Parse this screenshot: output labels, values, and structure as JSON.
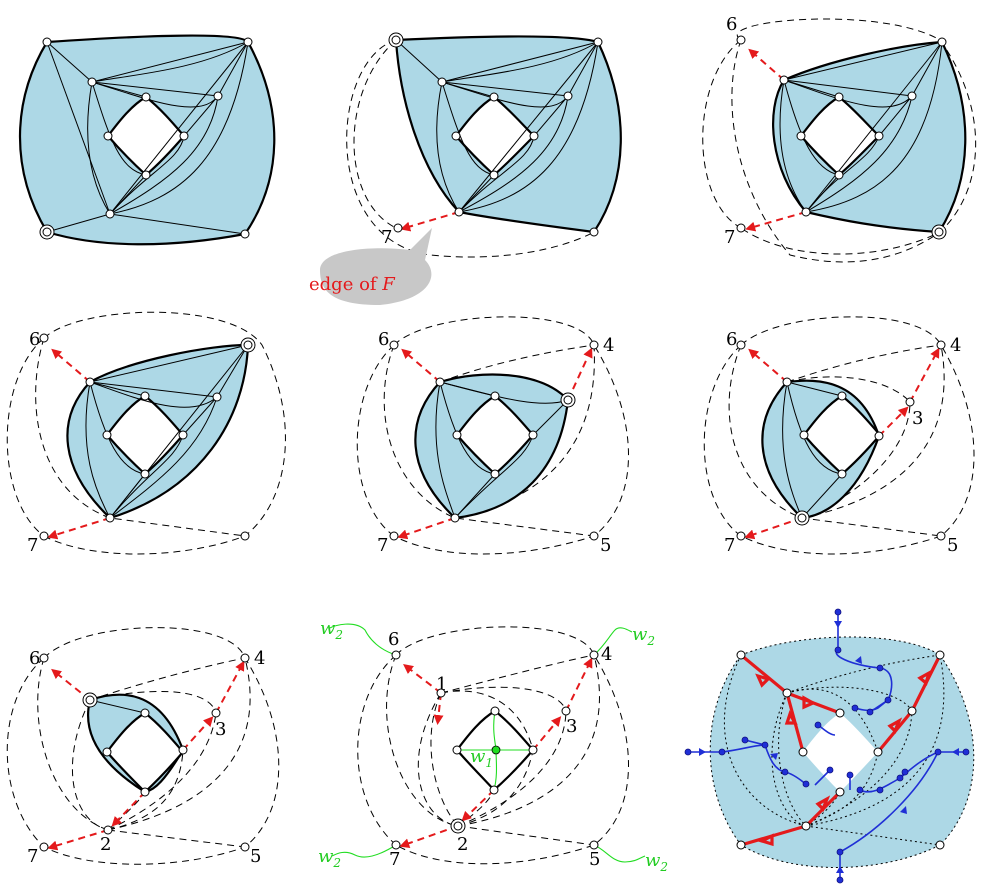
{
  "callout": {
    "text": "edge of ",
    "symbol": "F"
  },
  "labels": {
    "p3": [
      "7"
    ],
    "p4": [
      "6",
      "7"
    ],
    "p5": [
      "6",
      "7"
    ],
    "p6": [
      "6",
      "4",
      "7",
      "5"
    ],
    "p7": [
      "6",
      "4",
      "3",
      "7",
      "5"
    ],
    "p8": [
      "6",
      "4",
      "3",
      "2",
      "7",
      "5"
    ],
    "p9": [
      "w2",
      "6",
      "1",
      "4",
      "w2",
      "3",
      "w1",
      "2",
      "w2",
      "7",
      "5",
      "w2"
    ]
  },
  "colors": {
    "fill": "#add8e6",
    "red": "#e41a1c",
    "blue": "#1f2fd6",
    "green": "#22dd22"
  }
}
